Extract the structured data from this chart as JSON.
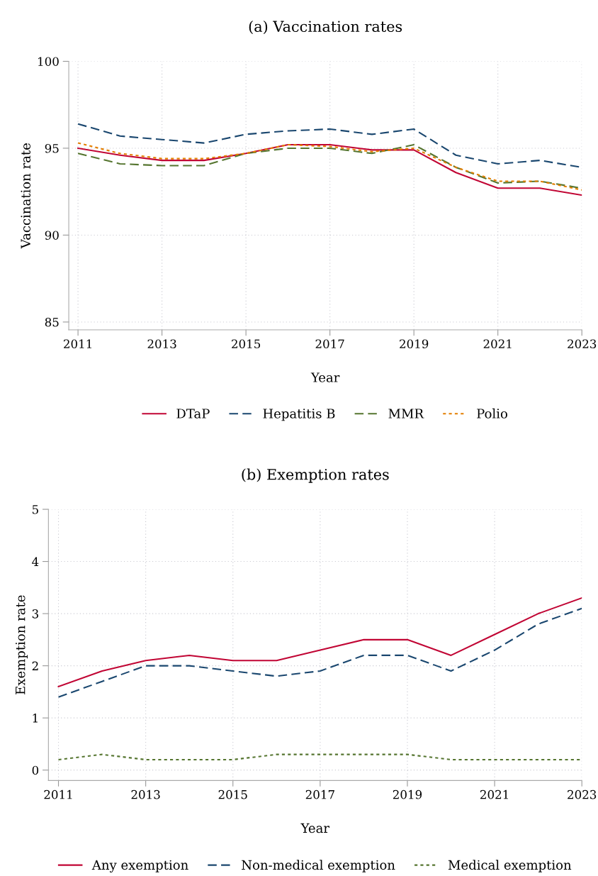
{
  "chart_data": [
    {
      "type": "line",
      "title": "(a) Vaccination rates",
      "xlabel": "Year",
      "ylabel": "Vaccination rate",
      "x": [
        2011,
        2012,
        2013,
        2014,
        2015,
        2016,
        2017,
        2018,
        2019,
        2020,
        2021,
        2022,
        2023
      ],
      "series": [
        {
          "name": "DTaP",
          "color": "#c10534",
          "line_style": "solid",
          "values": [
            95.0,
            94.6,
            94.3,
            94.3,
            94.7,
            95.2,
            95.2,
            94.9,
            94.9,
            93.6,
            92.7,
            92.7,
            92.3
          ]
        },
        {
          "name": "Hepatitis B",
          "color": "#1a476f",
          "line_style": "dashed",
          "values": [
            96.4,
            95.7,
            95.5,
            95.3,
            95.8,
            96.0,
            96.1,
            95.8,
            96.1,
            94.6,
            94.1,
            94.3,
            93.9
          ]
        },
        {
          "name": "MMR",
          "color": "#55752f",
          "line_style": "dashed",
          "values": [
            94.7,
            94.1,
            94.0,
            94.0,
            94.7,
            95.0,
            95.0,
            94.7,
            95.2,
            93.9,
            93.0,
            93.1,
            92.7
          ]
        },
        {
          "name": "Polio",
          "color": "#e37e00",
          "line_style": "dotted",
          "values": [
            95.3,
            94.7,
            94.4,
            94.4,
            94.7,
            95.2,
            95.1,
            94.8,
            95.0,
            93.9,
            93.1,
            93.1,
            92.6
          ]
        }
      ],
      "xlim": [
        2010.78,
        2023
      ],
      "xticks": [
        2011,
        2013,
        2015,
        2017,
        2019,
        2021,
        2023
      ],
      "ylim": [
        84.55,
        100
      ],
      "yticks": [
        85,
        90,
        95,
        100
      ],
      "grid": true,
      "legend": "bottom",
      "marker": "none"
    },
    {
      "type": "line",
      "title": "(b) Exemption rates",
      "xlabel": "Year",
      "ylabel": "Exemption rate",
      "x": [
        2011,
        2012,
        2013,
        2014,
        2015,
        2016,
        2017,
        2018,
        2019,
        2020,
        2021,
        2022,
        2023
      ],
      "series": [
        {
          "name": "Any exemption",
          "color": "#c10534",
          "line_style": "solid",
          "values": [
            1.6,
            1.9,
            2.1,
            2.2,
            2.1,
            2.1,
            2.3,
            2.5,
            2.5,
            2.2,
            2.6,
            3.0,
            3.3
          ]
        },
        {
          "name": "Non-medical exemption",
          "color": "#1a476f",
          "line_style": "dashed",
          "values": [
            1.4,
            1.7,
            2.0,
            2.0,
            1.9,
            1.8,
            1.9,
            2.2,
            2.2,
            1.9,
            2.3,
            2.8,
            3.1
          ]
        },
        {
          "name": "Medical exemption",
          "color": "#55752f",
          "line_style": "dotted",
          "values": [
            0.2,
            0.3,
            0.2,
            0.2,
            0.2,
            0.3,
            0.3,
            0.3,
            0.3,
            0.2,
            0.2,
            0.2,
            0.2
          ]
        }
      ],
      "xlim": [
        2010.77,
        2023
      ],
      "xticks": [
        2011,
        2013,
        2015,
        2017,
        2019,
        2021,
        2023
      ],
      "ylim": [
        -0.2,
        5
      ],
      "yticks": [
        0,
        1,
        2,
        3,
        4,
        5
      ],
      "grid": true,
      "legend": "bottom",
      "marker": "none"
    }
  ]
}
